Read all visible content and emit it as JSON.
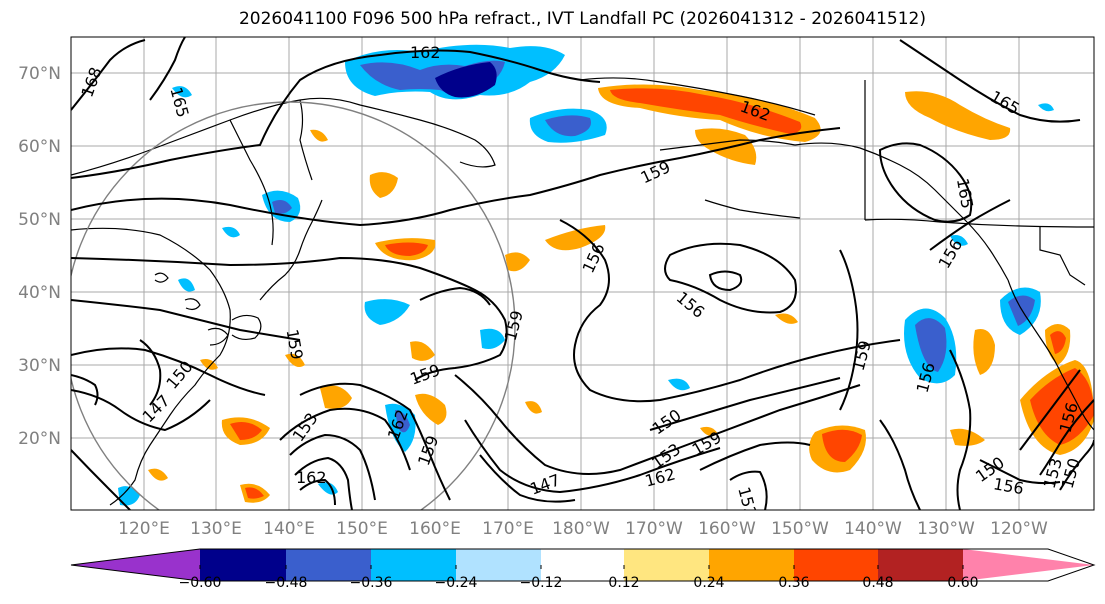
{
  "title": "2026041100 F096 500 hPa refract., IVT Landfall PC (2026041312 - 2026041512)",
  "lat_labels": [
    "70°N",
    "60°N",
    "50°N",
    "40°N",
    "30°N",
    "20°N"
  ],
  "lon_labels": [
    "120°E",
    "130°E",
    "140°E",
    "150°E",
    "160°E",
    "170°E",
    "180°W",
    "170°W",
    "160°W",
    "150°W",
    "140°W",
    "130°W",
    "120°W"
  ],
  "contour_labels": [
    "162",
    "168",
    "165",
    "159",
    "156",
    "159",
    "156",
    "159",
    "162",
    "153",
    "150",
    "147",
    "162",
    "159",
    "147",
    "150",
    "153",
    "159",
    "162",
    "159",
    "156",
    "153",
    "150",
    "156",
    "153",
    "150",
    "156",
    "162",
    "165",
    "165",
    "156",
    "159"
  ],
  "colorbar": {
    "colors": [
      "#9932cc",
      "#00008b",
      "#3a5fcd",
      "#00bfff",
      "#b0e2ff",
      "#ffffff",
      "#ffe680",
      "#ffa500",
      "#ff4500",
      "#b22222",
      "#ff82ab"
    ],
    "tick_labels": [
      "−0.60",
      "−0.48",
      "−0.36",
      "−0.24",
      "−0.12",
      "0.12",
      "0.24",
      "0.36",
      "0.48",
      "0.60"
    ]
  },
  "shading_colors": {
    "dark_blue": "#00008b",
    "blue": "#3a5fcd",
    "light_blue": "#00bfff",
    "pale_yellow": "#ffe680",
    "orange": "#ffa500",
    "red_orange": "#ff4500"
  }
}
